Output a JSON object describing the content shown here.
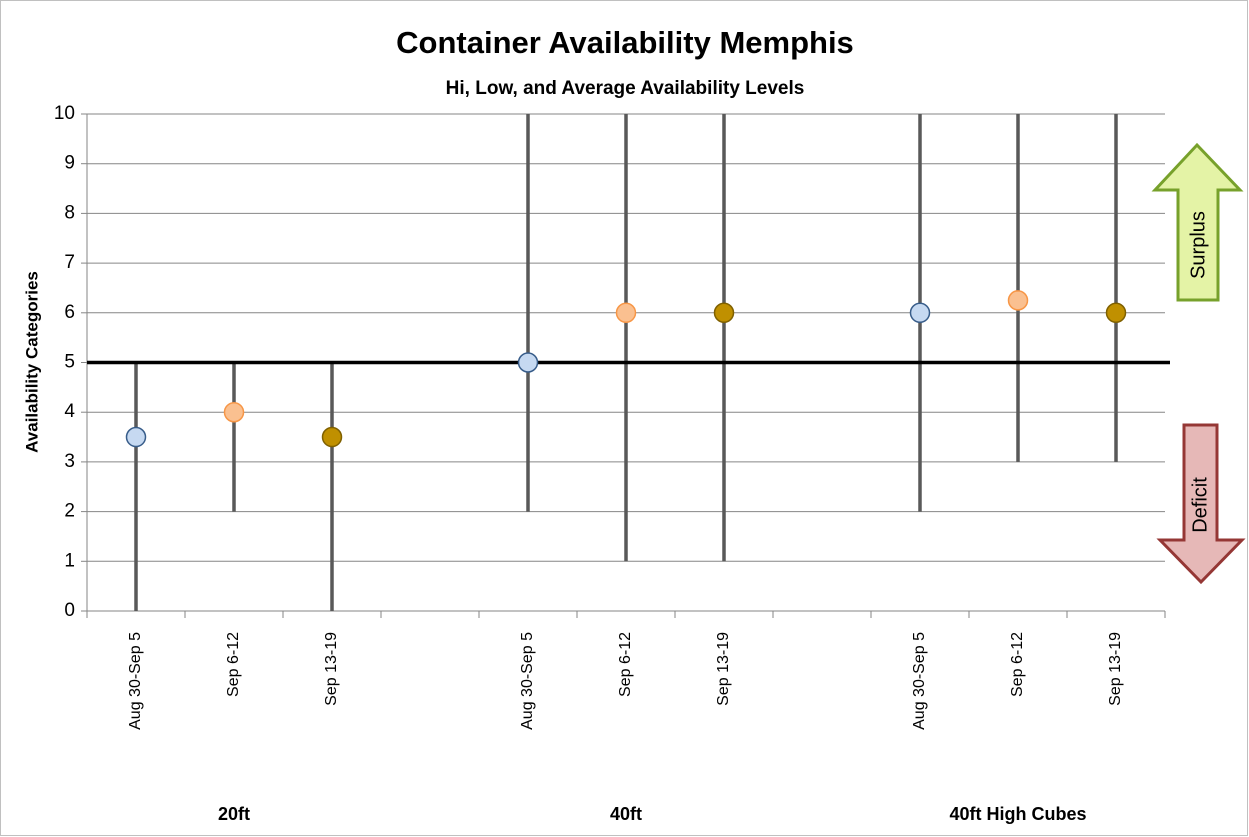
{
  "chart_data": {
    "type": "hilo",
    "title": "Container Availability  Memphis",
    "subtitle": "Hi, Low, and Average Availability Levels",
    "y_label": "Availability Categories",
    "categories": [
      "Aug 30-Sep 5",
      "Sep 6-12",
      "Sep 13-19",
      null,
      "Aug 30-Sep 5",
      "Sep 6-12",
      "Sep 13-19",
      null,
      "Aug 30-Sep 5",
      "Sep 6-12",
      "Sep 13-19"
    ],
    "high": [
      5,
      5,
      5,
      null,
      10,
      10,
      10,
      null,
      10,
      10,
      10
    ],
    "low": [
      0,
      2,
      0,
      null,
      2,
      1,
      1,
      null,
      2,
      3,
      3
    ],
    "average": [
      3.5,
      4,
      3.5,
      null,
      5,
      6,
      6,
      null,
      6,
      6.25,
      6
    ],
    "marker_colors": [
      "#c6d9f1",
      "#fac090",
      "#c09000",
      null,
      "#c6d9f1",
      "#fac090",
      "#c09000",
      null,
      "#c6d9f1",
      "#fac090",
      "#c09000"
    ],
    "line_color": "#595959",
    "groups": [
      {
        "label": "20ft",
        "from": 0,
        "to": 2
      },
      {
        "label": "40ft",
        "from": 4,
        "to": 6
      },
      {
        "label": "40ft High Cubes",
        "from": 8,
        "to": 10
      }
    ],
    "reference_line": 5,
    "annotations": [
      "Surplus",
      "Deficit"
    ],
    "ylim": [
      0,
      10
    ],
    "yticks": [
      0,
      1,
      2,
      3,
      4,
      5,
      6,
      7,
      8,
      9,
      10
    ],
    "grid": true
  }
}
